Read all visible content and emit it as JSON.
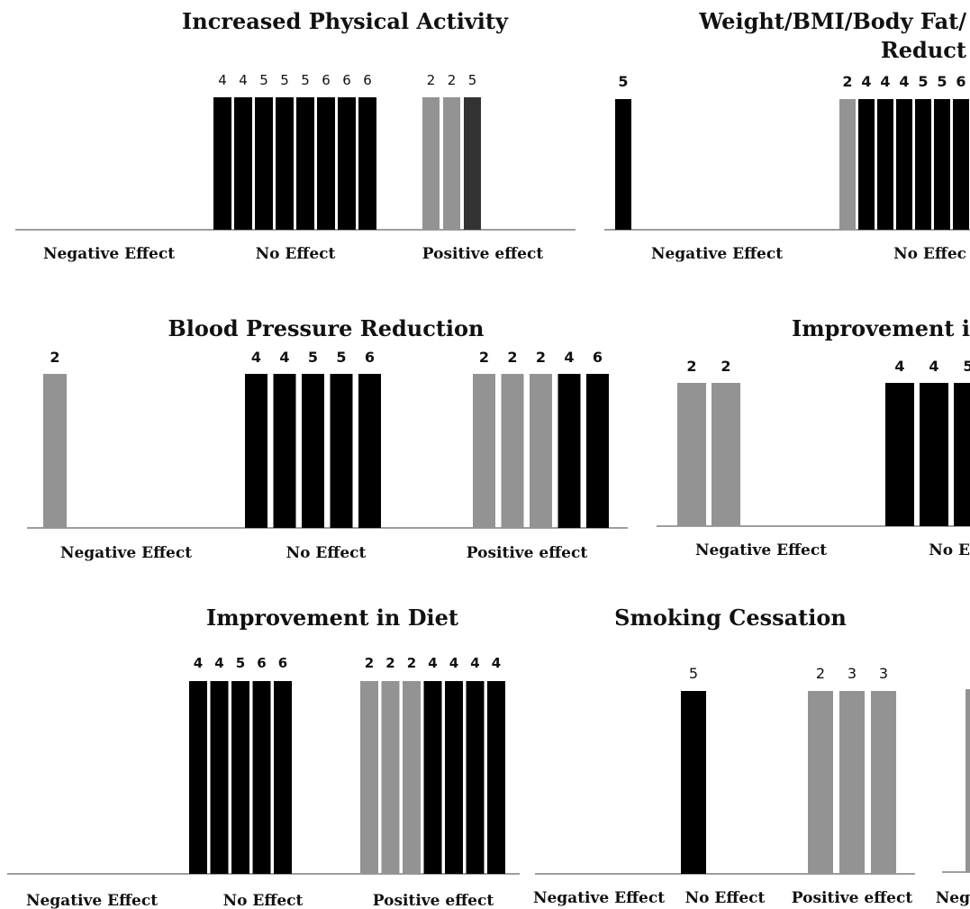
{
  "colors": {
    "black": "#000000",
    "gray": "#939393",
    "dark": "#333333",
    "axis": "#7f7f7f",
    "text": "#111111"
  },
  "chart_data": [
    {
      "type": "bar",
      "title": "Increased Physical Activity",
      "title_lines": [
        "Increased Physical Activity"
      ],
      "categories": [
        "Negative Effect",
        "No Effect",
        "Positive effect"
      ],
      "groups": [
        [],
        [
          {
            "label": "4",
            "color": "black"
          },
          {
            "label": "4",
            "color": "black"
          },
          {
            "label": "5",
            "color": "black"
          },
          {
            "label": "5",
            "color": "black"
          },
          {
            "label": "5",
            "color": "black"
          },
          {
            "label": "6",
            "color": "black"
          },
          {
            "label": "6",
            "color": "black"
          },
          {
            "label": "6",
            "color": "black"
          }
        ],
        [
          {
            "label": "2",
            "color": "gray"
          },
          {
            "label": "2",
            "color": "gray"
          },
          {
            "label": "5",
            "color": "dark"
          }
        ]
      ]
    },
    {
      "type": "bar",
      "title": "Weight/BMI/Body Fat/ Reduct",
      "title_lines": [
        "Weight/BMI/Body Fat/",
        "Reduct"
      ],
      "categories": [
        "Negative Effect",
        "No Effec"
      ],
      "groups": [
        [
          {
            "label": "5",
            "color": "black"
          }
        ],
        [
          {
            "label": "2",
            "color": "gray"
          },
          {
            "label": "4",
            "color": "black"
          },
          {
            "label": "4",
            "color": "black"
          },
          {
            "label": "4",
            "color": "black"
          },
          {
            "label": "5",
            "color": "black"
          },
          {
            "label": "5",
            "color": "black"
          },
          {
            "label": "6",
            "color": "black"
          }
        ]
      ]
    },
    {
      "type": "bar",
      "title": "Blood Pressure Reduction",
      "title_lines": [
        "Blood Pressure Reduction"
      ],
      "categories": [
        "Negative Effect",
        "No Effect",
        "Positive effect"
      ],
      "groups": [
        [
          {
            "label": "2",
            "color": "gray"
          }
        ],
        [
          {
            "label": "4",
            "color": "black"
          },
          {
            "label": "4",
            "color": "black"
          },
          {
            "label": "5",
            "color": "black"
          },
          {
            "label": "5",
            "color": "black"
          },
          {
            "label": "6",
            "color": "black"
          }
        ],
        [
          {
            "label": "2",
            "color": "gray"
          },
          {
            "label": "2",
            "color": "gray"
          },
          {
            "label": "2",
            "color": "gray"
          },
          {
            "label": "4",
            "color": "black"
          },
          {
            "label": "6",
            "color": "black"
          }
        ]
      ]
    },
    {
      "type": "bar",
      "title": "Improvement i",
      "title_lines": [
        "Improvement i"
      ],
      "categories": [
        "Negative Effect",
        "No E"
      ],
      "groups": [
        [
          {
            "label": "2",
            "color": "gray"
          },
          {
            "label": "2",
            "color": "gray"
          }
        ],
        [
          {
            "label": "4",
            "color": "black"
          },
          {
            "label": "4",
            "color": "black"
          },
          {
            "label": "5",
            "color": "black"
          }
        ]
      ]
    },
    {
      "type": "bar",
      "title": "Improvement in Diet",
      "title_lines": [
        "Improvement in Diet"
      ],
      "categories": [
        "Negative Effect",
        "No Effect",
        "Positive effect"
      ],
      "groups": [
        [],
        [
          {
            "label": "4",
            "color": "black"
          },
          {
            "label": "4",
            "color": "black"
          },
          {
            "label": "5",
            "color": "black"
          },
          {
            "label": "6",
            "color": "black"
          },
          {
            "label": "6",
            "color": "black"
          }
        ],
        [
          {
            "label": "2",
            "color": "gray"
          },
          {
            "label": "2",
            "color": "gray"
          },
          {
            "label": "2",
            "color": "gray"
          },
          {
            "label": "4",
            "color": "black"
          },
          {
            "label": "4",
            "color": "black"
          },
          {
            "label": "4",
            "color": "black"
          },
          {
            "label": "4",
            "color": "black"
          }
        ]
      ]
    },
    {
      "type": "bar",
      "title": "Smoking Cessation",
      "title_lines": [
        "Smoking Cessation"
      ],
      "categories": [
        "Negative Effect",
        "No Effect",
        "Positive effect"
      ],
      "groups": [
        [],
        [
          {
            "label": "5",
            "color": "black"
          }
        ],
        [
          {
            "label": "2",
            "color": "gray"
          },
          {
            "label": "3",
            "color": "gray"
          },
          {
            "label": "3",
            "color": "gray"
          }
        ]
      ]
    },
    {
      "type": "bar",
      "title": "",
      "title_lines": [],
      "categories": [
        "Neg"
      ],
      "groups": [
        [
          {
            "label": "",
            "color": "gray"
          }
        ]
      ]
    }
  ]
}
